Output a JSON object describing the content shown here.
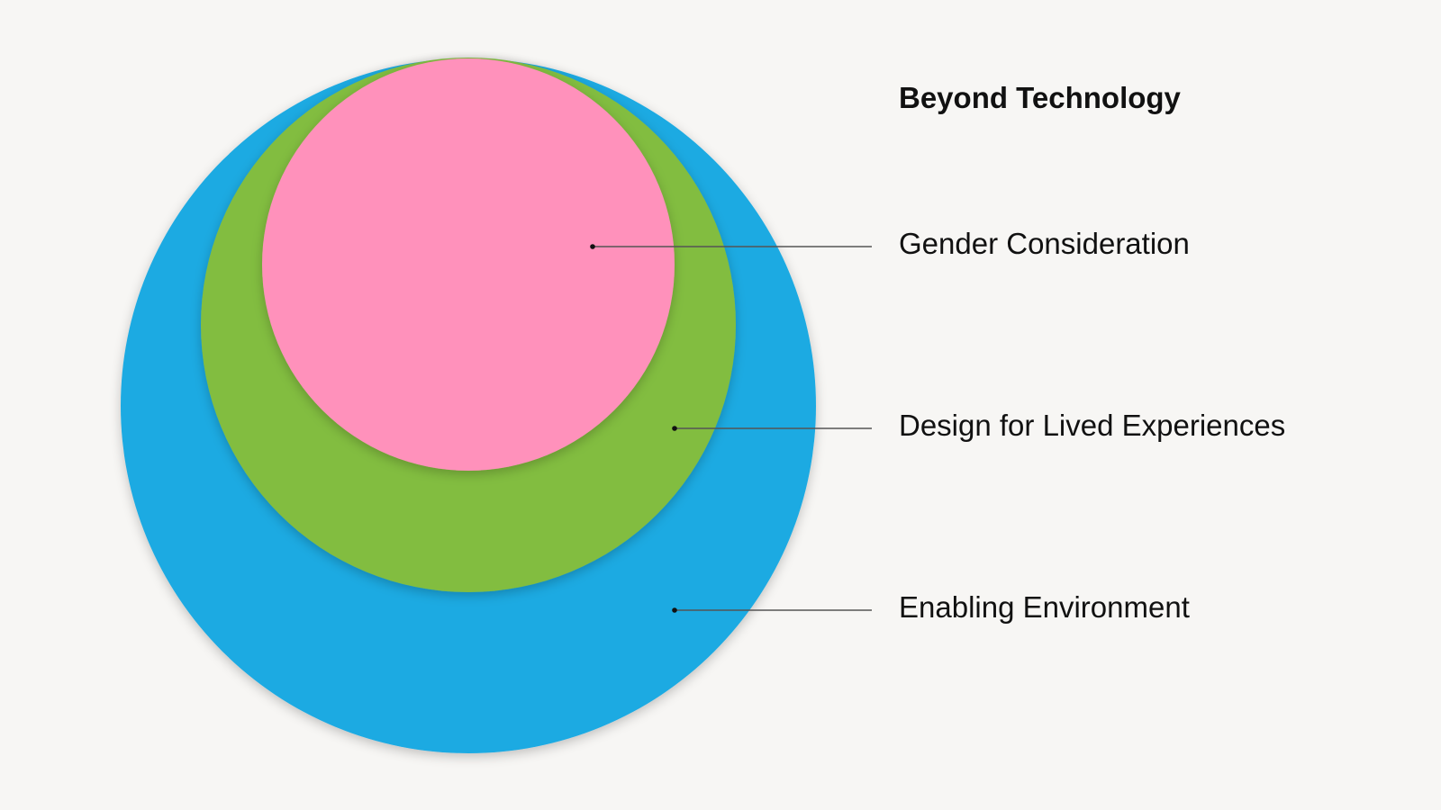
{
  "diagram": {
    "title": "Beyond Technology",
    "layers": [
      {
        "id": "inner",
        "label": "Gender Consideration",
        "color": "#ff91bb"
      },
      {
        "id": "middle",
        "label": "Design for Lived Experiences",
        "color": "#82bd41"
      },
      {
        "id": "outer",
        "label": "Enabling Environment",
        "color": "#1eaae2"
      }
    ],
    "leader_line_color": "#555555",
    "background_color": "#f7f6f4"
  }
}
